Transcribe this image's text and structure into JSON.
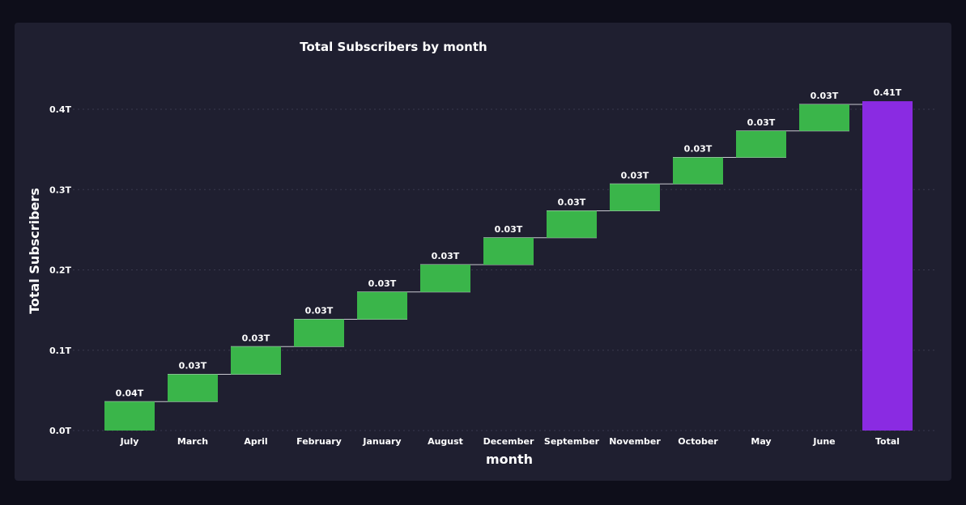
{
  "chart_data": {
    "type": "waterfall",
    "title": "Total Subscribers by month",
    "xlabel": "month",
    "ylabel": "Total Subscribers",
    "ylim": [
      0,
      0.44
    ],
    "yticks": [
      {
        "value": 0.0,
        "label": "0.0T"
      },
      {
        "value": 0.1,
        "label": "0.1T"
      },
      {
        "value": 0.2,
        "label": "0.2T"
      },
      {
        "value": 0.3,
        "label": "0.3T"
      },
      {
        "value": 0.4,
        "label": "0.4T"
      }
    ],
    "unit": "T",
    "categories": [
      "July",
      "March",
      "April",
      "February",
      "January",
      "August",
      "December",
      "September",
      "November",
      "October",
      "May",
      "June",
      "Total"
    ],
    "values": [
      0.036,
      0.034,
      0.0345,
      0.034,
      0.034,
      0.034,
      0.0335,
      0.0335,
      0.0335,
      0.033,
      0.033,
      0.033,
      0.41
    ],
    "value_labels": [
      "0.04T",
      "0.03T",
      "0.03T",
      "0.03T",
      "0.03T",
      "0.03T",
      "0.03T",
      "0.03T",
      "0.03T",
      "0.03T",
      "0.03T",
      "0.03T",
      "0.41T"
    ],
    "total_index": 12,
    "grid": true,
    "colors": {
      "increase": "#3ab54a",
      "total": "#8a2be2",
      "grid": "#3a3a4e",
      "connector": "#c8c8d0"
    }
  }
}
